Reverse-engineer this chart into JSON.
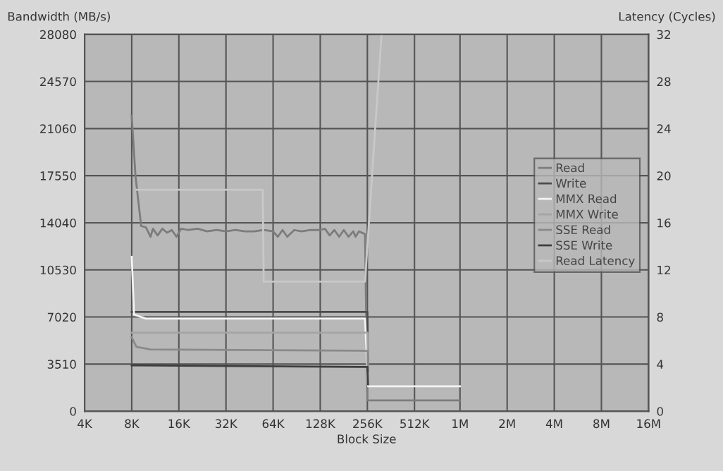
{
  "chart_data": {
    "type": "line",
    "xlabel": "Block Size",
    "ylabel": "Bandwidth (MB/s)",
    "y2label": "Latency (Cycles)",
    "log": "x",
    "xlim": [
      4000,
      16000000
    ],
    "xticks": [
      {
        "value": 4000,
        "label": "4K"
      },
      {
        "value": 8000,
        "label": "8K"
      },
      {
        "value": 16000,
        "label": "16K"
      },
      {
        "value": 32000,
        "label": "32K"
      },
      {
        "value": 64000,
        "label": "64K"
      },
      {
        "value": 128000,
        "label": "128K"
      },
      {
        "value": 256000,
        "label": "256K"
      },
      {
        "value": 512000,
        "label": "512K"
      },
      {
        "value": 1000000,
        "label": "1M"
      },
      {
        "value": 2000000,
        "label": "2M"
      },
      {
        "value": 4000000,
        "label": "4M"
      },
      {
        "value": 8000000,
        "label": "8M"
      },
      {
        "value": 16000000,
        "label": "16M"
      }
    ],
    "ylim": [
      0,
      28080
    ],
    "yticks": [
      0,
      3510,
      7020,
      10530,
      14040,
      17550,
      21060,
      24570,
      28080
    ],
    "y2lim": [
      0,
      32
    ],
    "y2ticks": [
      0,
      4,
      8,
      12,
      16,
      20,
      24,
      28,
      32
    ],
    "grid": true,
    "legend": "right",
    "series": [
      {
        "name": "Read",
        "color": "#7c7c7c",
        "x": [
          8000,
          8460,
          9190,
          9850,
          10560,
          10930,
          11710,
          12550,
          13450,
          14420,
          15450,
          16560,
          18380,
          21110,
          24250,
          27860,
          32000,
          36760,
          42220,
          48500,
          55720,
          64000,
          68590,
          73520,
          78790,
          87430,
          97010,
          111430,
          128000,
          137190,
          147030,
          157590,
          168900,
          181020,
          194010,
          207940,
          215270,
          225950,
          247290,
          256000,
          262990,
          1000000
        ],
        "values": [
          22000,
          17500,
          13800,
          13700,
          13000,
          13600,
          13100,
          13600,
          13300,
          13500,
          13000,
          13600,
          13500,
          13600,
          13400,
          13500,
          13400,
          13500,
          13400,
          13400,
          13500,
          13400,
          13000,
          13500,
          13000,
          13500,
          13400,
          13500,
          13500,
          13600,
          13100,
          13500,
          13000,
          13500,
          13000,
          13400,
          13000,
          13400,
          13200,
          800,
          800,
          800
        ]
      },
      {
        "name": "Write",
        "color": "#4c4c4c",
        "x": [
          8000,
          8570,
          256000,
          258790
        ],
        "values": [
          7400,
          7400,
          7400,
          3000
        ]
      },
      {
        "name": "MMX Read",
        "color": "#f4f4f4",
        "x": [
          8000,
          8280,
          9850,
          247290,
          258790,
          262990,
          1000000
        ],
        "values": [
          11500,
          7200,
          6900,
          6900,
          1850,
          1850,
          1850
        ]
      },
      {
        "name": "MMX Write",
        "color": "#a4a4a4",
        "x": [
          8000,
          256000,
          258790
        ],
        "values": [
          5850,
          5850,
          3000
        ]
      },
      {
        "name": "SSE Read",
        "color": "#8a8a8a",
        "x": [
          8000,
          8570,
          10560,
          256000,
          258790
        ],
        "values": [
          5500,
          4800,
          4600,
          4500,
          3000
        ]
      },
      {
        "name": "SSE Write",
        "color": "#3e3e3e",
        "x": [
          8000,
          256000,
          258790
        ],
        "values": [
          3420,
          3300,
          2000
        ]
      },
      {
        "name": "Read Latency",
        "color": "#c8c8c8",
        "axis": "y2",
        "x": [
          8570,
          54960,
          55720,
          247290,
          315170
        ],
        "values": [
          18.8,
          18.8,
          11.0,
          11.0,
          32
        ]
      }
    ]
  }
}
